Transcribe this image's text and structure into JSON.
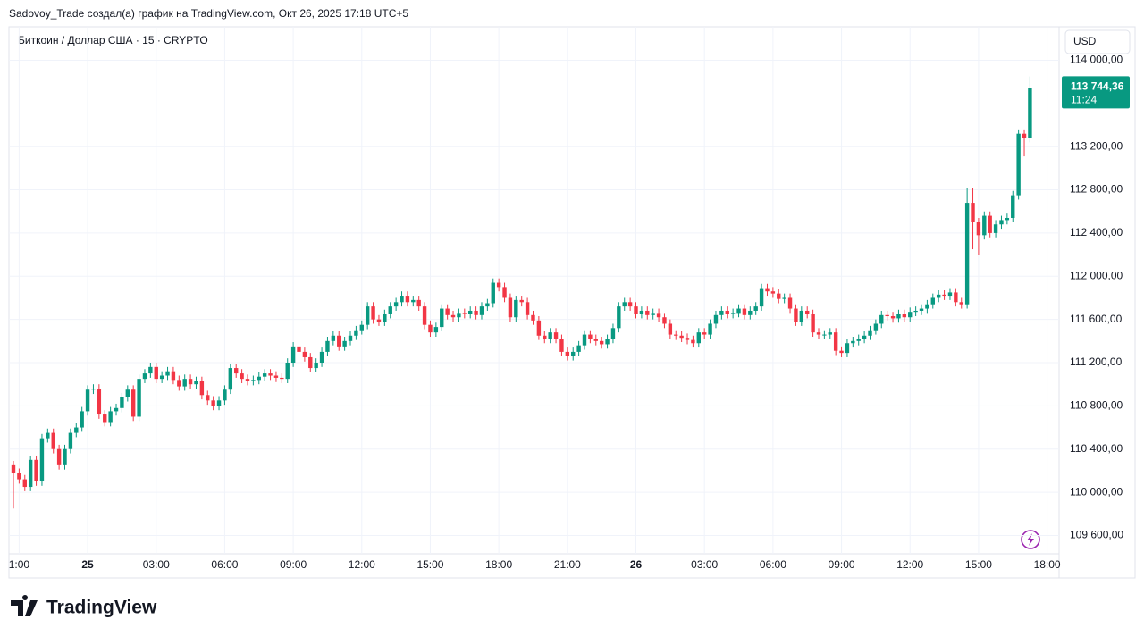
{
  "header": {
    "author_line": "Sadovoy_Trade создал(а) график на TradingView.com, Окт 26, 2025 17:18 UTC+5"
  },
  "logo": "TradingView",
  "chart_data": {
    "type": "candlestick",
    "title": "Биткоин / Доллар США · 15 · CRYPTO",
    "currency": "USD",
    "up_color": "#089981",
    "down_color": "#f23645",
    "grid": true,
    "last_price_label": "113 744,36",
    "countdown": "11:24",
    "ylim": [
      109430,
      114310
    ],
    "yticks": [
      {
        "value": 109600,
        "label": "109 600,00"
      },
      {
        "value": 110000,
        "label": "110 000,00"
      },
      {
        "value": 110400,
        "label": "110 400,00"
      },
      {
        "value": 110800,
        "label": "110 800,00"
      },
      {
        "value": 111200,
        "label": "111 200,00"
      },
      {
        "value": 111600,
        "label": "111 600,00"
      },
      {
        "value": 112000,
        "label": "112 000,00"
      },
      {
        "value": 112400,
        "label": "112 400,00"
      },
      {
        "value": 112800,
        "label": "112 800,00"
      },
      {
        "value": 113200,
        "label": "113 200,00"
      },
      {
        "value": 114000,
        "label": "114 000,00"
      }
    ],
    "categories": [
      null,
      "1:00",
      null,
      null,
      null,
      null,
      null,
      null,
      null,
      null,
      null,
      null,
      null,
      "25",
      null,
      null,
      null,
      null,
      null,
      null,
      null,
      null,
      null,
      null,
      null,
      "03:00",
      null,
      null,
      null,
      null,
      null,
      null,
      null,
      null,
      null,
      null,
      null,
      "06:00",
      null,
      null,
      null,
      null,
      null,
      null,
      null,
      null,
      null,
      null,
      null,
      "09:00",
      null,
      null,
      null,
      null,
      null,
      null,
      null,
      null,
      null,
      null,
      null,
      "12:00",
      null,
      null,
      null,
      null,
      null,
      null,
      null,
      null,
      null,
      null,
      null,
      "15:00",
      null,
      null,
      null,
      null,
      null,
      null,
      null,
      null,
      null,
      null,
      null,
      "18:00",
      null,
      null,
      null,
      null,
      null,
      null,
      null,
      null,
      null,
      null,
      null,
      "21:00",
      null,
      null,
      null,
      null,
      null,
      null,
      null,
      null,
      null,
      null,
      null,
      "26",
      null,
      null,
      null,
      null,
      null,
      null,
      null,
      null,
      null,
      null,
      null,
      "03:00",
      null,
      null,
      null,
      null,
      null,
      null,
      null,
      null,
      null,
      null,
      null,
      "06:00",
      null,
      null,
      null,
      null,
      null,
      null,
      null,
      null,
      null,
      null,
      null,
      "09:00",
      null,
      null,
      null,
      null,
      null,
      null,
      null,
      null,
      null,
      null,
      null,
      "12:00",
      null,
      null,
      null,
      null,
      null,
      null,
      null,
      null,
      null,
      null,
      null,
      "15:00",
      null,
      null,
      null,
      null,
      null,
      null,
      null,
      null,
      null,
      null,
      null,
      "18:00"
    ],
    "open": [
      110250,
      110180,
      110120,
      110050,
      110300,
      110100,
      110500,
      110550,
      110400,
      110250,
      110400,
      110550,
      110600,
      110750,
      110950,
      110960,
      110720,
      110650,
      110750,
      110780,
      110880,
      110950,
      110700,
      111050,
      111100,
      111160,
      111050,
      111080,
      111120,
      111040,
      110980,
      111050,
      111000,
      111030,
      110900,
      110850,
      110800,
      110850,
      110950,
      111150,
      111100,
      111050,
      111030,
      111040,
      111070,
      111100,
      111080,
      111060,
      111050,
      111200,
      111350,
      111300,
      111250,
      111150,
      111200,
      111300,
      111400,
      111450,
      111350,
      111400,
      111450,
      111500,
      111550,
      111720,
      111600,
      111580,
      111650,
      111720,
      111760,
      111820,
      111760,
      111780,
      111720,
      111550,
      111480,
      111530,
      111700,
      111640,
      111620,
      111660,
      111650,
      111680,
      111640,
      111720,
      111750,
      111940,
      111900,
      111800,
      111620,
      111780,
      111760,
      111640,
      111590,
      111450,
      111420,
      111480,
      111420,
      111300,
      111260,
      111300,
      111360,
      111460,
      111420,
      111400,
      111370,
      111420,
      111520,
      111720,
      111760,
      111720,
      111650,
      111680,
      111640,
      111660,
      111620,
      111560,
      111460,
      111450,
      111430,
      111410,
      111380,
      111480,
      111460,
      111560,
      111640,
      111680,
      111650,
      111660,
      111700,
      111640,
      111680,
      111720,
      111890,
      111860,
      111840,
      111790,
      111800,
      111700,
      111580,
      111680,
      111650,
      111480,
      111460,
      111460,
      111480,
      111310,
      111290,
      111380,
      111400,
      111420,
      111450,
      111500,
      111560,
      111640,
      111630,
      111610,
      111650,
      111620,
      111670,
      111680,
      111700,
      111740,
      111800,
      111830,
      111820,
      111850,
      111760,
      111740,
      112680,
      112500,
      112380,
      112560,
      112400,
      112480,
      112520,
      112540,
      112750,
      113320,
      113280,
      null,
      null,
      null
    ],
    "high": [
      110290,
      110220,
      110160,
      110340,
      110340,
      110540,
      110590,
      110590,
      110440,
      110440,
      110590,
      110640,
      110790,
      110990,
      111000,
      111000,
      110760,
      110790,
      110820,
      110920,
      110990,
      110990,
      111090,
      111140,
      111200,
      111200,
      111120,
      111160,
      111160,
      111080,
      111090,
      111090,
      111070,
      111070,
      110940,
      110890,
      110890,
      110990,
      111190,
      111190,
      111140,
      111090,
      111080,
      111110,
      111140,
      111140,
      111120,
      111100,
      111240,
      111390,
      111390,
      111340,
      111290,
      111240,
      111340,
      111440,
      111490,
      111490,
      111440,
      111490,
      111540,
      111590,
      111760,
      111760,
      111640,
      111690,
      111760,
      111800,
      111860,
      111860,
      111820,
      111820,
      111760,
      111590,
      111570,
      111740,
      111740,
      111680,
      111700,
      111700,
      111720,
      111720,
      111760,
      111790,
      111980,
      111980,
      111940,
      111840,
      111820,
      111820,
      111800,
      111680,
      111630,
      111490,
      111520,
      111520,
      111460,
      111340,
      111340,
      111400,
      111500,
      111500,
      111460,
      111440,
      111460,
      111560,
      111760,
      111800,
      111800,
      111760,
      111720,
      111720,
      111700,
      111700,
      111660,
      111600,
      111500,
      111490,
      111470,
      111450,
      111520,
      111520,
      111600,
      111680,
      111720,
      111720,
      111700,
      111740,
      111740,
      111720,
      111760,
      111930,
      111930,
      111900,
      111880,
      111840,
      111840,
      111740,
      111720,
      111720,
      111690,
      111520,
      111500,
      111520,
      111520,
      111350,
      111420,
      111440,
      111460,
      111490,
      111540,
      111600,
      111680,
      111680,
      111670,
      111690,
      111690,
      111710,
      111720,
      111740,
      111780,
      111840,
      111870,
      111870,
      111890,
      111890,
      111800,
      112820,
      112820,
      112540,
      112600,
      112600,
      112520,
      112560,
      112580,
      112790,
      113360,
      113360,
      113850,
      null,
      null,
      null
    ],
    "low": [
      109850,
      110080,
      110010,
      110010,
      110060,
      110060,
      110460,
      110360,
      110210,
      110210,
      110360,
      110510,
      110560,
      110710,
      110910,
      110680,
      110610,
      110610,
      110710,
      110740,
      110840,
      110660,
      110660,
      111010,
      111060,
      111010,
      111010,
      111040,
      111000,
      110940,
      110940,
      110960,
      110960,
      110860,
      110810,
      110760,
      110760,
      110810,
      110910,
      111060,
      111010,
      110990,
      110990,
      111000,
      111030,
      111040,
      111020,
      111010,
      111010,
      111160,
      111260,
      111210,
      111110,
      111110,
      111160,
      111260,
      111360,
      111310,
      111310,
      111360,
      111410,
      111460,
      111510,
      111560,
      111540,
      111540,
      111610,
      111680,
      111720,
      111720,
      111720,
      111680,
      111510,
      111440,
      111440,
      111490,
      111600,
      111580,
      111580,
      111610,
      111610,
      111600,
      111600,
      111680,
      111710,
      111860,
      111760,
      111580,
      111580,
      111720,
      111600,
      111550,
      111410,
      111380,
      111380,
      111380,
      111260,
      111220,
      111220,
      111260,
      111320,
      111380,
      111360,
      111330,
      111330,
      111380,
      111480,
      111680,
      111680,
      111610,
      111610,
      111600,
      111600,
      111580,
      111520,
      111420,
      111410,
      111390,
      111370,
      111340,
      111340,
      111420,
      111420,
      111520,
      111600,
      111610,
      111610,
      111620,
      111600,
      111600,
      111640,
      111680,
      111820,
      111800,
      111750,
      111750,
      111660,
      111540,
      111540,
      111610,
      111440,
      111420,
      111420,
      111420,
      111270,
      111250,
      111250,
      111340,
      111360,
      111380,
      111410,
      111460,
      111520,
      111590,
      111570,
      111570,
      111580,
      111580,
      111630,
      111640,
      111660,
      111700,
      111760,
      111780,
      111780,
      111720,
      111700,
      111700,
      112250,
      112200,
      112340,
      112360,
      112360,
      112440,
      112480,
      112500,
      112710,
      113110,
      113240,
      null,
      null,
      null
    ],
    "close": [
      110180,
      110120,
      110050,
      110300,
      110100,
      110500,
      110550,
      110400,
      110250,
      110400,
      110550,
      110600,
      110750,
      110950,
      110960,
      110720,
      110650,
      110750,
      110780,
      110880,
      110950,
      110700,
      111050,
      111100,
      111160,
      111050,
      111080,
      111120,
      111040,
      110980,
      111050,
      111000,
      111030,
      110900,
      110850,
      110800,
      110850,
      110950,
      111150,
      111100,
      111050,
      111030,
      111040,
      111070,
      111100,
      111080,
      111060,
      111050,
      111200,
      111350,
      111300,
      111250,
      111150,
      111200,
      111300,
      111400,
      111450,
      111350,
      111400,
      111450,
      111500,
      111550,
      111720,
      111600,
      111580,
      111650,
      111720,
      111760,
      111820,
      111760,
      111780,
      111720,
      111550,
      111480,
      111530,
      111700,
      111640,
      111620,
      111660,
      111650,
      111680,
      111640,
      111720,
      111750,
      111940,
      111900,
      111800,
      111620,
      111780,
      111760,
      111640,
      111590,
      111450,
      111420,
      111480,
      111420,
      111300,
      111260,
      111300,
      111360,
      111460,
      111420,
      111400,
      111370,
      111420,
      111520,
      111720,
      111760,
      111720,
      111650,
      111680,
      111640,
      111660,
      111620,
      111560,
      111460,
      111450,
      111430,
      111410,
      111380,
      111480,
      111460,
      111560,
      111640,
      111680,
      111650,
      111660,
      111700,
      111640,
      111680,
      111720,
      111890,
      111860,
      111840,
      111790,
      111800,
      111700,
      111580,
      111680,
      111650,
      111480,
      111460,
      111460,
      111480,
      111310,
      111290,
      111380,
      111400,
      111420,
      111450,
      111500,
      111560,
      111640,
      111630,
      111610,
      111650,
      111620,
      111670,
      111680,
      111700,
      111740,
      111800,
      111830,
      111820,
      111850,
      111760,
      111740,
      112680,
      112500,
      112380,
      112560,
      112400,
      112480,
      112520,
      112540,
      112750,
      113320,
      113280,
      113744.36,
      null,
      null,
      null
    ]
  }
}
